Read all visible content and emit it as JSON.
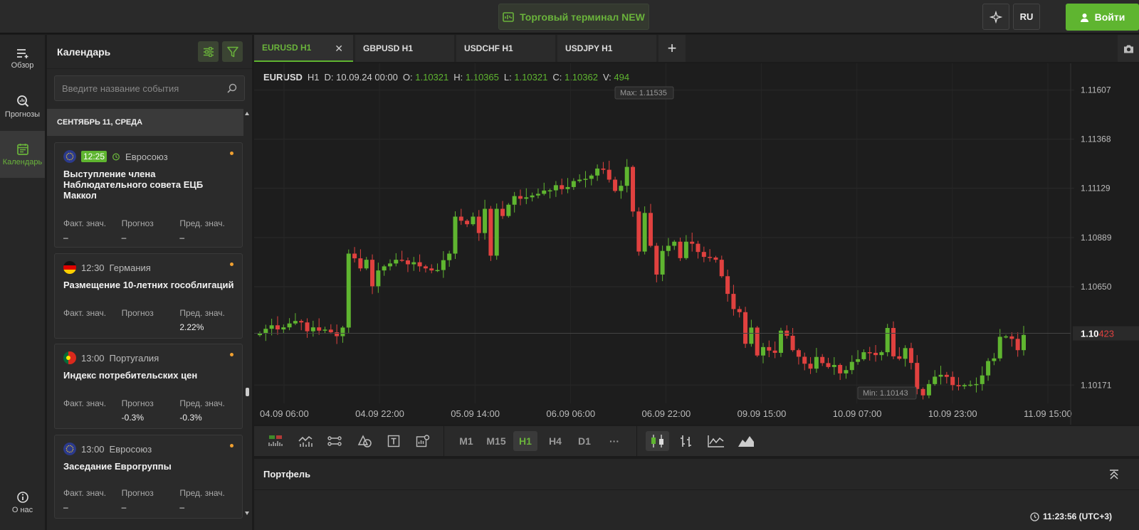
{
  "header": {
    "terminal_label": "Торговый терминал NEW",
    "lang": "RU",
    "login_label": "Войти",
    "colors": {
      "accent": "#5fb530",
      "bear": "#e0413f"
    }
  },
  "nav": {
    "items": [
      {
        "label": "Обзор",
        "icon": "overview-icon"
      },
      {
        "label": "Прогнозы",
        "icon": "forecast-icon"
      },
      {
        "label": "Календарь",
        "icon": "calendar-icon"
      }
    ],
    "about": "О нас"
  },
  "calendar": {
    "title": "Календарь",
    "search_placeholder": "Введите название события",
    "date_header": "СЕНТЯБРЬ 11, СРЕДА",
    "col_labels": [
      "Факт. знач.",
      "Прогноз",
      "Пред. знач."
    ],
    "events": [
      {
        "time": "12:25",
        "country": "Евросоюз",
        "title": "Выступление члена Наблюдательного совета ЕЦБ Маккол",
        "actual": "–",
        "forecast": "–",
        "previous": "–"
      },
      {
        "time": "12:30",
        "country": "Германия",
        "title": "Размещение 10-летних гособлигаций",
        "actual": "",
        "forecast": "",
        "previous": "2.22%"
      },
      {
        "time": "13:00",
        "country": "Португалия",
        "title": "Индекс потребительских цен",
        "actual": "",
        "forecast": "-0.3%",
        "previous": "-0.3%"
      },
      {
        "time": "13:00",
        "country": "Евросоюз",
        "title": "Заседание Еврогруппы",
        "actual": "–",
        "forecast": "–",
        "previous": "–"
      }
    ]
  },
  "tabs": [
    {
      "label": "EURUSD H1",
      "active": true
    },
    {
      "label": "GBPUSD H1"
    },
    {
      "label": "USDCHF H1"
    },
    {
      "label": "USDJPY H1"
    }
  ],
  "ohlc": {
    "symbol": "EURUSD",
    "tf": "H1",
    "d": "D: 10.09.24 00:00",
    "o_label": "O:",
    "o": "1.10321",
    "h_label": "H:",
    "h": "1.10365",
    "l_label": "L:",
    "l": "1.10321",
    "c_label": "C:",
    "c": "1.10362",
    "v_label": "V:",
    "v": "494"
  },
  "chart_data": {
    "type": "candlestick",
    "y_ticks": [
      "1.11607",
      "1.11368",
      "1.11129",
      "1.10889",
      "1.10650",
      "1.10171"
    ],
    "x_ticks": [
      "04.09 06:00",
      "04.09 22:00",
      "05.09 14:00",
      "06.09 06:00",
      "06.09 22:00",
      "09.09 15:00",
      "10.09 07:00",
      "10.09 23:00",
      "11.09 15:00"
    ],
    "current_price_main": "1.10",
    "current_price_tail": "423",
    "current_price": 1.10423,
    "max_label": "Max: 1.11535",
    "min_label": "Min: 1.10143",
    "ylim": [
      1.10082,
      1.11668
    ],
    "close": [
      1.10424,
      1.10445,
      1.10462,
      1.10442,
      1.10452,
      1.10471,
      1.10483,
      1.10476,
      1.10433,
      1.10452,
      1.10436,
      1.10441,
      1.10428,
      1.10409,
      1.10451,
      1.10811,
      1.10788,
      1.10739,
      1.10781,
      1.10652,
      1.10729,
      1.10749,
      1.10763,
      1.10781,
      1.10778,
      1.10759,
      1.10769,
      1.10749,
      1.10739,
      1.10729,
      1.10731,
      1.10779,
      1.10811,
      1.10991,
      1.10971,
      1.10954,
      1.10991,
      1.10911,
      1.11029,
      1.10801,
      1.11029,
      1.10994,
      1.11049,
      1.11091,
      1.11078,
      1.11085,
      1.11094,
      1.11102,
      1.11118,
      1.11119,
      1.11144,
      1.11125,
      1.11135,
      1.11164,
      1.11171,
      1.11175,
      1.11191,
      1.11225,
      1.11219,
      1.11171,
      1.11116,
      1.11141,
      1.11233,
      1.11016,
      1.10821,
      1.11009,
      1.10849,
      1.10709,
      1.10824,
      1.10849,
      1.10869,
      1.10789,
      1.10869,
      1.10859,
      1.10819,
      1.10795,
      1.10792,
      1.10781,
      1.10701,
      1.10615,
      1.10541,
      1.10526,
      1.10372,
      1.10451,
      1.10315,
      1.10356,
      1.10339,
      1.10328,
      1.10436,
      1.10411,
      1.10341,
      1.10309,
      1.10275,
      1.10251,
      1.10308,
      1.10278,
      1.10259,
      1.10269,
      1.10228,
      1.10244,
      1.10284,
      1.10297,
      1.10331,
      1.10328,
      1.10317,
      1.10331,
      1.10449,
      1.10311,
      1.10299,
      1.10351,
      1.10279,
      1.10152,
      1.10121,
      1.10176,
      1.10212,
      1.10221,
      1.10211,
      1.10171,
      1.10165,
      1.10171,
      1.10173,
      1.10176,
      1.10218,
      1.10288,
      1.10301,
      1.10406,
      1.10408,
      1.10396,
      1.10341,
      1.10415
    ]
  },
  "toolbar": {
    "timeframes": [
      "M1",
      "M15",
      "H1",
      "H4",
      "D1"
    ],
    "active_tf": "H1",
    "more": "···"
  },
  "portfolio": {
    "title": "Портфель",
    "clock": "11:23:56 (UTC+3)"
  }
}
